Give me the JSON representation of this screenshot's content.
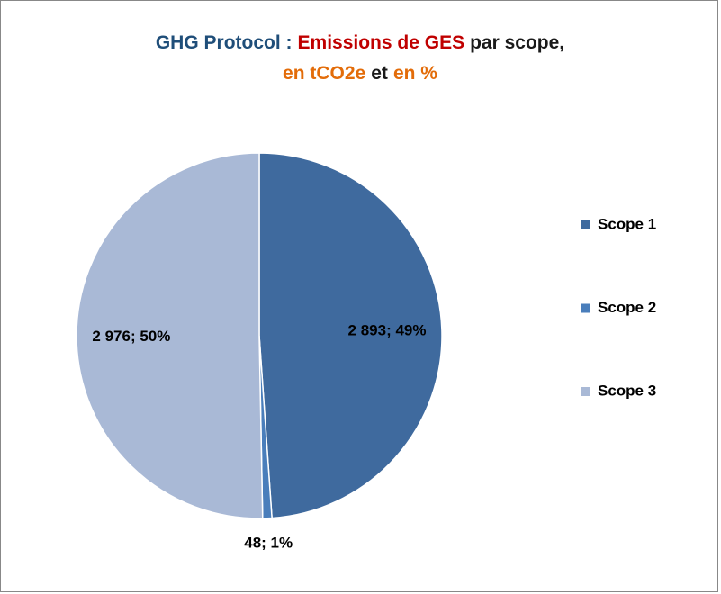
{
  "chart_data": {
    "type": "pie",
    "title": [
      [
        {
          "text": "GHG Protocol :",
          "color": "#1f4e79"
        },
        {
          "text": "Emissions de GES",
          "color": "#c00000"
        },
        {
          "text": "par scope,",
          "color": "#1a1a1a"
        }
      ],
      [
        {
          "text": "en tCO2e",
          "color": "#e36c09"
        },
        {
          "text": "et",
          "color": "#1a1a1a"
        },
        {
          "text": "en %",
          "color": "#e36c09"
        }
      ]
    ],
    "categories": [
      "Scope 1",
      "Scope 2",
      "Scope 3"
    ],
    "values": [
      2893,
      48,
      2976
    ],
    "value_labels": [
      "2 893; 49%",
      "48; 1%",
      "2 976; 50%"
    ],
    "colors": [
      "#3f6a9e",
      "#4a7ebb",
      "#a9b9d6"
    ],
    "legend": "right"
  }
}
